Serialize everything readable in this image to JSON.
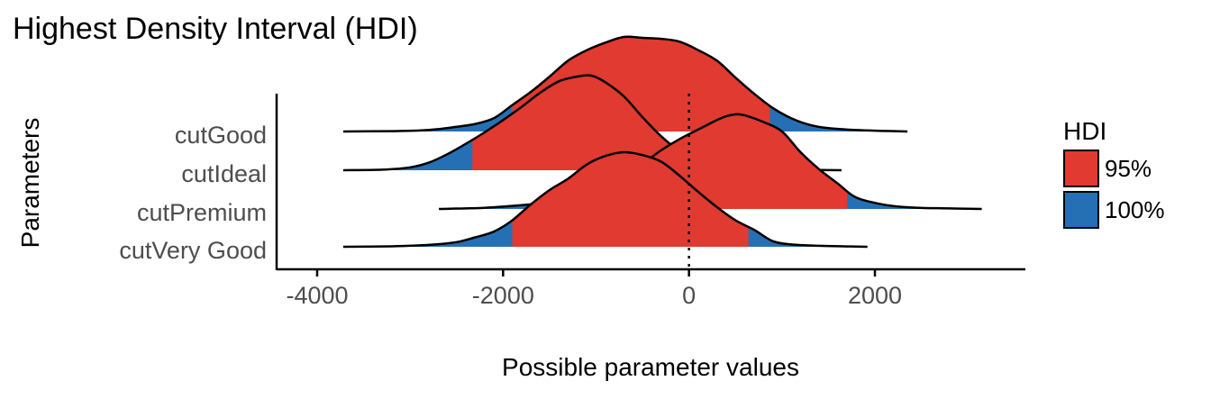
{
  "chart_data": {
    "type": "area",
    "title": "Highest Density Interval (HDI)",
    "xlabel": "Possible parameter values",
    "ylabel": "Parameters",
    "xlim": [
      -4000,
      2800
    ],
    "x_ticks": [
      -4000,
      -2000,
      0,
      2000
    ],
    "x_tick_labels": [
      "-4000",
      "-2000",
      "0",
      "2000"
    ],
    "reference_line_x": 0,
    "legend": {
      "title": "HDI",
      "position": "right",
      "entries": [
        {
          "label": "95%",
          "color": "#E03A31"
        },
        {
          "label": "100%",
          "color": "#2570B5"
        }
      ]
    },
    "parameters": [
      {
        "name": "cutGood",
        "hdi95": [
          -1900,
          870
        ],
        "density": [
          [
            -3720,
            0
          ],
          [
            -3200,
            0.004
          ],
          [
            -2900,
            0.01
          ],
          [
            -2700,
            0.025
          ],
          [
            -2500,
            0.05
          ],
          [
            -2300,
            0.08
          ],
          [
            -2100,
            0.14
          ],
          [
            -1900,
            0.28
          ],
          [
            -1700,
            0.42
          ],
          [
            -1500,
            0.58
          ],
          [
            -1300,
            0.75
          ],
          [
            -1100,
            0.86
          ],
          [
            -900,
            0.94
          ],
          [
            -700,
            1
          ],
          [
            -500,
            0.99
          ],
          [
            -300,
            0.98
          ],
          [
            -100,
            0.95
          ],
          [
            100,
            0.86
          ],
          [
            300,
            0.75
          ],
          [
            500,
            0.57
          ],
          [
            700,
            0.4
          ],
          [
            900,
            0.25
          ],
          [
            1100,
            0.14
          ],
          [
            1300,
            0.07
          ],
          [
            1500,
            0.035
          ],
          [
            1800,
            0.015
          ],
          [
            2100,
            0.006
          ],
          [
            2350,
            0
          ]
        ]
      },
      {
        "name": "cutIdeal",
        "hdi95": [
          -2330,
          150
        ],
        "density": [
          [
            -3720,
            0
          ],
          [
            -3300,
            0.006
          ],
          [
            -3000,
            0.03
          ],
          [
            -2800,
            0.08
          ],
          [
            -2600,
            0.17
          ],
          [
            -2400,
            0.28
          ],
          [
            -2200,
            0.4
          ],
          [
            -2000,
            0.53
          ],
          [
            -1800,
            0.67
          ],
          [
            -1600,
            0.82
          ],
          [
            -1400,
            0.94
          ],
          [
            -1200,
            0.99
          ],
          [
            -1050,
            1
          ],
          [
            -900,
            0.93
          ],
          [
            -700,
            0.78
          ],
          [
            -500,
            0.56
          ],
          [
            -300,
            0.36
          ],
          [
            -100,
            0.2
          ],
          [
            100,
            0.09
          ],
          [
            300,
            0.04
          ],
          [
            600,
            0.018
          ],
          [
            900,
            0.008
          ],
          [
            1300,
            0.003
          ],
          [
            1640,
            0
          ]
        ]
      },
      {
        "name": "cutPremium",
        "hdi95": [
          -910,
          1700
        ],
        "density": [
          [
            -2690,
            0
          ],
          [
            -2200,
            0.012
          ],
          [
            -1800,
            0.04
          ],
          [
            -1500,
            0.07
          ],
          [
            -1300,
            0.1
          ],
          [
            -1100,
            0.13
          ],
          [
            -900,
            0.18
          ],
          [
            -700,
            0.3
          ],
          [
            -500,
            0.47
          ],
          [
            -300,
            0.62
          ],
          [
            -100,
            0.74
          ],
          [
            100,
            0.84
          ],
          [
            300,
            0.94
          ],
          [
            400,
            0.98
          ],
          [
            500,
            1
          ],
          [
            600,
            0.99
          ],
          [
            800,
            0.92
          ],
          [
            1000,
            0.82
          ],
          [
            1200,
            0.6
          ],
          [
            1400,
            0.42
          ],
          [
            1600,
            0.27
          ],
          [
            1800,
            0.12
          ],
          [
            2100,
            0.045
          ],
          [
            2400,
            0.015
          ],
          [
            2800,
            0.006
          ],
          [
            3150,
            0
          ]
        ]
      },
      {
        "name": "cutVery Good",
        "hdi95": [
          -1900,
          640
        ],
        "density": [
          [
            -3720,
            0
          ],
          [
            -3200,
            0.005
          ],
          [
            -2800,
            0.02
          ],
          [
            -2500,
            0.05
          ],
          [
            -2300,
            0.1
          ],
          [
            -2100,
            0.16
          ],
          [
            -1900,
            0.28
          ],
          [
            -1700,
            0.45
          ],
          [
            -1500,
            0.6
          ],
          [
            -1300,
            0.72
          ],
          [
            -1100,
            0.87
          ],
          [
            -900,
            0.96
          ],
          [
            -700,
            1
          ],
          [
            -500,
            0.97
          ],
          [
            -300,
            0.9
          ],
          [
            -100,
            0.75
          ],
          [
            100,
            0.58
          ],
          [
            300,
            0.42
          ],
          [
            500,
            0.28
          ],
          [
            700,
            0.18
          ],
          [
            900,
            0.06
          ],
          [
            1100,
            0.025
          ],
          [
            1400,
            0.01
          ],
          [
            1700,
            0.004
          ],
          [
            1920,
            0
          ]
        ]
      }
    ]
  }
}
